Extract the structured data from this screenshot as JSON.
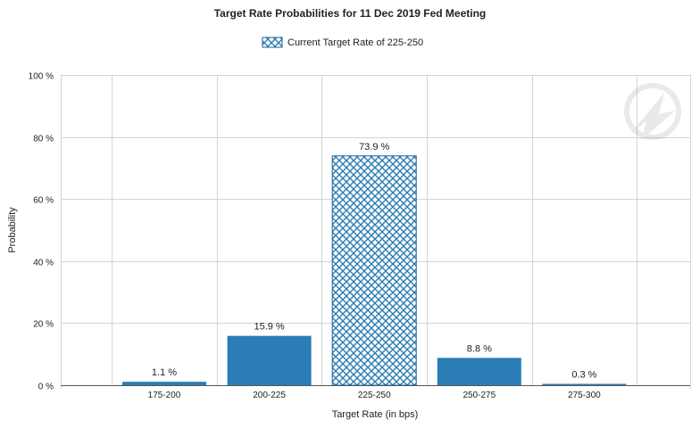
{
  "chart_data": {
    "type": "bar",
    "title": "Target Rate Probabilities for 11 Dec 2019 Fed Meeting",
    "xlabel": "Target Rate (in bps)",
    "ylabel": "Probability",
    "categories": [
      "175-200",
      "200-225",
      "225-250",
      "250-275",
      "275-300"
    ],
    "values": [
      1.1,
      15.9,
      73.9,
      8.8,
      0.3
    ],
    "data_labels": [
      "1.1 %",
      "15.9 %",
      "73.9 %",
      "8.8 %",
      "0.3 %"
    ],
    "ylim": [
      0,
      100
    ],
    "yticks": [
      0,
      20,
      40,
      60,
      80,
      100
    ],
    "ytick_labels": [
      "0 %",
      "20 %",
      "40 %",
      "60 %",
      "80 %",
      "100 %"
    ],
    "legend": {
      "label": "Current Target Rate of 225-250",
      "placement": "top-center"
    },
    "highlight_category": "225-250",
    "grid": true,
    "colors": {
      "bar": "#2a7db5",
      "bar_border": "#1f5f8b",
      "hatch_line": "#2a7db5",
      "grid": "#d4d4d4",
      "axis": "#555555"
    }
  }
}
